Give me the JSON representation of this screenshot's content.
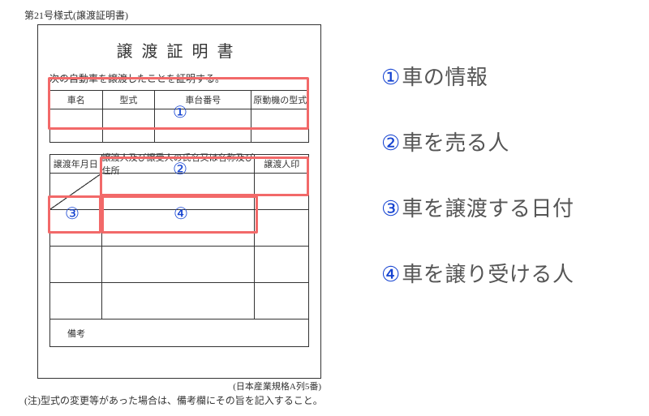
{
  "header_note": "第21号様式(譲渡証明書)",
  "title": "譲渡証明書",
  "subtitle": "次の自動車を譲渡したことを証明する。",
  "table1": {
    "headers": {
      "car_name": "車名",
      "model": "型式",
      "chassis": "車台番号",
      "engine": "原動機の型式"
    }
  },
  "table2": {
    "headers": {
      "date": "譲渡年月日",
      "person": "譲渡人及び譲受人の氏名又は名称及び住所",
      "seal": "譲渡人印"
    },
    "remarks_label": "備考"
  },
  "standard_note": "(日本産業規格A列5番)",
  "foot_note": "(注)型式の変更等があった場合は、備考欄にその旨を記入すること。",
  "numbers": {
    "n1": "①",
    "n2": "②",
    "n3": "③",
    "n4": "④"
  },
  "legend": {
    "l1": {
      "num": "①",
      "text": "車の情報"
    },
    "l2": {
      "num": "②",
      "text": "車を売る人"
    },
    "l3": {
      "num": "③",
      "text": "車を譲渡する日付"
    },
    "l4": {
      "num": "④",
      "text": "車を譲り受ける人"
    }
  },
  "colors": {
    "highlight": "#f26969",
    "num_color": "#1543d1",
    "legend_text": "#555555",
    "border": "#333333"
  }
}
